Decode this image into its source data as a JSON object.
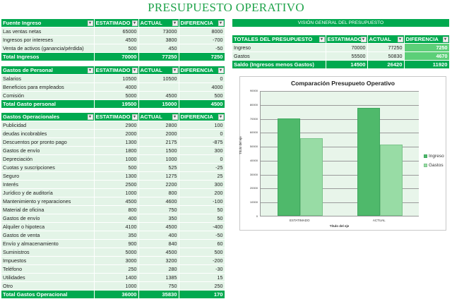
{
  "title": "PRESUPUESTO OPERATIVO",
  "columns": [
    "ESTATIMADO",
    "ACTUAL",
    "DIFERENCIA"
  ],
  "ingresos": {
    "header": "Fuente Ingreso",
    "rows": [
      {
        "label": "Las ventas netas",
        "est": "65000",
        "act": "73000",
        "dif": "8000"
      },
      {
        "label": "Ingresos por intereses",
        "est": "4500",
        "act": "3800",
        "dif": "-700"
      },
      {
        "label": "Venta de activos (ganancia/pérdida)",
        "est": "500",
        "act": "450",
        "dif": "-50"
      }
    ],
    "total": {
      "label": "Total Ingresos",
      "est": "70000",
      "act": "77250",
      "dif": "7250"
    }
  },
  "personal": {
    "header": "Gastos de Personal",
    "rows": [
      {
        "label": "Salarios",
        "est": "10500",
        "act": "10500",
        "dif": "0"
      },
      {
        "label": "Beneficios para empleados",
        "est": "4000",
        "act": "",
        "dif": "4000"
      },
      {
        "label": "Comisión",
        "est": "5000",
        "act": "4500",
        "dif": "500"
      }
    ],
    "total": {
      "label": "Total  Gasto personal",
      "est": "19500",
      "act": "15000",
      "dif": "4500"
    }
  },
  "operacionales": {
    "header": "Gastos Operacionales",
    "rows": [
      {
        "label": "Publicidad",
        "est": "2900",
        "act": "2800",
        "dif": "100"
      },
      {
        "label": "deudas incobrables",
        "est": "2000",
        "act": "2000",
        "dif": "0"
      },
      {
        "label": "Descuentos por pronto pago",
        "est": "1300",
        "act": "2175",
        "dif": "-875"
      },
      {
        "label": "Gastos de envío",
        "est": "1800",
        "act": "1500",
        "dif": "300"
      },
      {
        "label": "Depreciación",
        "est": "1000",
        "act": "1000",
        "dif": "0"
      },
      {
        "label": "Cuotas y suscripciones",
        "est": "500",
        "act": "525",
        "dif": "-25"
      },
      {
        "label": "Seguro",
        "est": "1300",
        "act": "1275",
        "dif": "25"
      },
      {
        "label": "Interés",
        "est": "2500",
        "act": "2200",
        "dif": "300"
      },
      {
        "label": "Jurídico y de auditoría",
        "est": "1000",
        "act": "800",
        "dif": "200"
      },
      {
        "label": "Mantenimiento y reparaciones",
        "est": "4500",
        "act": "4600",
        "dif": "-100"
      },
      {
        "label": "Material de oficina",
        "est": "800",
        "act": "750",
        "dif": "50"
      },
      {
        "label": "Gastos de envío",
        "est": "400",
        "act": "350",
        "dif": "50"
      },
      {
        "label": "Alquiler o hipoteca",
        "est": "4100",
        "act": "4500",
        "dif": "-400"
      },
      {
        "label": "Gastos de venta",
        "est": "350",
        "act": "400",
        "dif": "-50"
      },
      {
        "label": "Envío y almacenamiento",
        "est": "900",
        "act": "840",
        "dif": "60"
      },
      {
        "label": "Suministros",
        "est": "5000",
        "act": "4500",
        "dif": "500"
      },
      {
        "label": "Impuestos",
        "est": "3000",
        "act": "3200",
        "dif": "-200"
      },
      {
        "label": "Teléfono",
        "est": "250",
        "act": "280",
        "dif": "-30"
      },
      {
        "label": "Utilidades",
        "est": "1400",
        "act": "1385",
        "dif": "15"
      },
      {
        "label": "Otro",
        "est": "1000",
        "act": "750",
        "dif": "250"
      }
    ],
    "total": {
      "label": "Total Gastos Operacional",
      "est": "36000",
      "act": "35830",
      "dif": "170"
    }
  },
  "overview": {
    "banner": "VISIÓN GENERAL DEL PRESUPUESTO",
    "header": "TOTALES DEL PRESUPUESTO",
    "columns": [
      "ESTATIMADO",
      "ACTUAL",
      "DIFERENCIA"
    ],
    "rows": [
      {
        "label": "Ingreso",
        "est": "70000",
        "act": "77250",
        "dif": "7250"
      },
      {
        "label": "Gastos",
        "est": "55500",
        "act": "50830",
        "dif": "4670"
      }
    ],
    "total": {
      "label": "Saldo (Ingresos menos Gastos)",
      "est": "14500",
      "act": "26420",
      "dif": "11920"
    }
  },
  "chart_data": {
    "type": "bar",
    "title": "Comparación Presupueto Operativo",
    "categories": [
      "ESTATIMADO",
      "ACTUAL"
    ],
    "series": [
      {
        "name": "Ingreso",
        "values": [
          70000,
          77250
        ],
        "color": "#4fb96b"
      },
      {
        "name": "Gastos",
        "values": [
          55500,
          50830
        ],
        "color": "#98dca5"
      }
    ],
    "xlabel": "Título del eje",
    "ylabel": "Título del eje",
    "ylim": [
      0,
      90000
    ],
    "yticks": [
      "90000",
      "80000",
      "70000",
      "60000",
      "50000",
      "40000",
      "30000",
      "20000",
      "10000",
      "0"
    ],
    "grid": true,
    "legend_position": "right"
  }
}
